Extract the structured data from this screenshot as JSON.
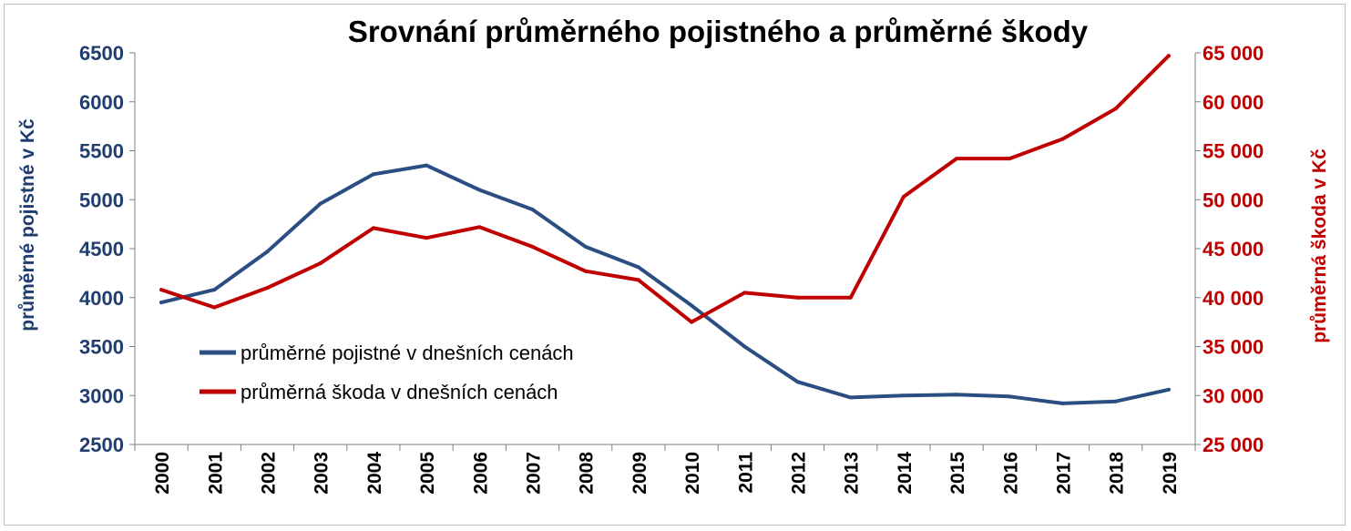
{
  "chart_data": {
    "type": "line",
    "title": "Srovnání průměrného pojistného a průměrné škody",
    "x": [
      "2000",
      "2001",
      "2002",
      "2003",
      "2004",
      "2005",
      "2006",
      "2007",
      "2008",
      "2009",
      "2010",
      "2011",
      "2012",
      "2013",
      "2014",
      "2015",
      "2016",
      "2017",
      "2018",
      "2019"
    ],
    "y_left": {
      "label": "průměrné pojistné v Kč",
      "lim": [
        2500,
        6500
      ],
      "ticks": [
        "2500",
        "3000",
        "3500",
        "4000",
        "4500",
        "5000",
        "5500",
        "6000",
        "6500"
      ],
      "color": "#1f3d6e"
    },
    "y_right": {
      "label": "průměrná škoda v Kč",
      "lim": [
        25000,
        65000
      ],
      "ticks": [
        "25 000",
        "30 000",
        "35 000",
        "40 000",
        "45 000",
        "50 000",
        "55 000",
        "60 000",
        "65 000"
      ],
      "color": "#c00000"
    },
    "series": [
      {
        "name": "průměrné pojistné v dnešních cenách",
        "axis": "left",
        "color": "#2b4e82",
        "values": [
          3950,
          4080,
          4470,
          4960,
          5260,
          5350,
          5100,
          4900,
          4520,
          4310,
          3920,
          3500,
          3140,
          2980,
          3000,
          3010,
          2990,
          2920,
          2940,
          3060
        ]
      },
      {
        "name": "průměrná škoda v dnešních cenách",
        "axis": "right",
        "color": "#c00000",
        "values": [
          40800,
          39000,
          41000,
          43500,
          47100,
          46100,
          47200,
          45200,
          42700,
          41800,
          37500,
          40500,
          40000,
          40000,
          50300,
          54200,
          54200,
          56200,
          59300,
          64700
        ]
      }
    ],
    "legend_position": "lower-left inside plot",
    "grid": false
  }
}
